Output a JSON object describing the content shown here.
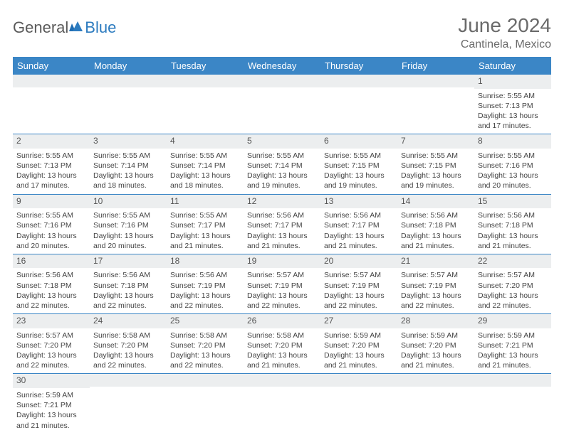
{
  "logo": {
    "part1": "General",
    "part2": "Blue"
  },
  "title": "June 2024",
  "location": "Cantinela, Mexico",
  "colors": {
    "header_bg": "#3b86c6",
    "header_text": "#ffffff",
    "daynum_bg": "#eceeef",
    "border": "#3b86c6",
    "title_color": "#6a6a6a"
  },
  "weekdays": [
    "Sunday",
    "Monday",
    "Tuesday",
    "Wednesday",
    "Thursday",
    "Friday",
    "Saturday"
  ],
  "weeks": [
    [
      {
        "day": "",
        "sunrise": "",
        "sunset": "",
        "daylight": ""
      },
      {
        "day": "",
        "sunrise": "",
        "sunset": "",
        "daylight": ""
      },
      {
        "day": "",
        "sunrise": "",
        "sunset": "",
        "daylight": ""
      },
      {
        "day": "",
        "sunrise": "",
        "sunset": "",
        "daylight": ""
      },
      {
        "day": "",
        "sunrise": "",
        "sunset": "",
        "daylight": ""
      },
      {
        "day": "",
        "sunrise": "",
        "sunset": "",
        "daylight": ""
      },
      {
        "day": "1",
        "sunrise": "Sunrise: 5:55 AM",
        "sunset": "Sunset: 7:13 PM",
        "daylight": "Daylight: 13 hours and 17 minutes."
      }
    ],
    [
      {
        "day": "2",
        "sunrise": "Sunrise: 5:55 AM",
        "sunset": "Sunset: 7:13 PM",
        "daylight": "Daylight: 13 hours and 17 minutes."
      },
      {
        "day": "3",
        "sunrise": "Sunrise: 5:55 AM",
        "sunset": "Sunset: 7:14 PM",
        "daylight": "Daylight: 13 hours and 18 minutes."
      },
      {
        "day": "4",
        "sunrise": "Sunrise: 5:55 AM",
        "sunset": "Sunset: 7:14 PM",
        "daylight": "Daylight: 13 hours and 18 minutes."
      },
      {
        "day": "5",
        "sunrise": "Sunrise: 5:55 AM",
        "sunset": "Sunset: 7:14 PM",
        "daylight": "Daylight: 13 hours and 19 minutes."
      },
      {
        "day": "6",
        "sunrise": "Sunrise: 5:55 AM",
        "sunset": "Sunset: 7:15 PM",
        "daylight": "Daylight: 13 hours and 19 minutes."
      },
      {
        "day": "7",
        "sunrise": "Sunrise: 5:55 AM",
        "sunset": "Sunset: 7:15 PM",
        "daylight": "Daylight: 13 hours and 19 minutes."
      },
      {
        "day": "8",
        "sunrise": "Sunrise: 5:55 AM",
        "sunset": "Sunset: 7:16 PM",
        "daylight": "Daylight: 13 hours and 20 minutes."
      }
    ],
    [
      {
        "day": "9",
        "sunrise": "Sunrise: 5:55 AM",
        "sunset": "Sunset: 7:16 PM",
        "daylight": "Daylight: 13 hours and 20 minutes."
      },
      {
        "day": "10",
        "sunrise": "Sunrise: 5:55 AM",
        "sunset": "Sunset: 7:16 PM",
        "daylight": "Daylight: 13 hours and 20 minutes."
      },
      {
        "day": "11",
        "sunrise": "Sunrise: 5:55 AM",
        "sunset": "Sunset: 7:17 PM",
        "daylight": "Daylight: 13 hours and 21 minutes."
      },
      {
        "day": "12",
        "sunrise": "Sunrise: 5:56 AM",
        "sunset": "Sunset: 7:17 PM",
        "daylight": "Daylight: 13 hours and 21 minutes."
      },
      {
        "day": "13",
        "sunrise": "Sunrise: 5:56 AM",
        "sunset": "Sunset: 7:17 PM",
        "daylight": "Daylight: 13 hours and 21 minutes."
      },
      {
        "day": "14",
        "sunrise": "Sunrise: 5:56 AM",
        "sunset": "Sunset: 7:18 PM",
        "daylight": "Daylight: 13 hours and 21 minutes."
      },
      {
        "day": "15",
        "sunrise": "Sunrise: 5:56 AM",
        "sunset": "Sunset: 7:18 PM",
        "daylight": "Daylight: 13 hours and 21 minutes."
      }
    ],
    [
      {
        "day": "16",
        "sunrise": "Sunrise: 5:56 AM",
        "sunset": "Sunset: 7:18 PM",
        "daylight": "Daylight: 13 hours and 22 minutes."
      },
      {
        "day": "17",
        "sunrise": "Sunrise: 5:56 AM",
        "sunset": "Sunset: 7:18 PM",
        "daylight": "Daylight: 13 hours and 22 minutes."
      },
      {
        "day": "18",
        "sunrise": "Sunrise: 5:56 AM",
        "sunset": "Sunset: 7:19 PM",
        "daylight": "Daylight: 13 hours and 22 minutes."
      },
      {
        "day": "19",
        "sunrise": "Sunrise: 5:57 AM",
        "sunset": "Sunset: 7:19 PM",
        "daylight": "Daylight: 13 hours and 22 minutes."
      },
      {
        "day": "20",
        "sunrise": "Sunrise: 5:57 AM",
        "sunset": "Sunset: 7:19 PM",
        "daylight": "Daylight: 13 hours and 22 minutes."
      },
      {
        "day": "21",
        "sunrise": "Sunrise: 5:57 AM",
        "sunset": "Sunset: 7:19 PM",
        "daylight": "Daylight: 13 hours and 22 minutes."
      },
      {
        "day": "22",
        "sunrise": "Sunrise: 5:57 AM",
        "sunset": "Sunset: 7:20 PM",
        "daylight": "Daylight: 13 hours and 22 minutes."
      }
    ],
    [
      {
        "day": "23",
        "sunrise": "Sunrise: 5:57 AM",
        "sunset": "Sunset: 7:20 PM",
        "daylight": "Daylight: 13 hours and 22 minutes."
      },
      {
        "day": "24",
        "sunrise": "Sunrise: 5:58 AM",
        "sunset": "Sunset: 7:20 PM",
        "daylight": "Daylight: 13 hours and 22 minutes."
      },
      {
        "day": "25",
        "sunrise": "Sunrise: 5:58 AM",
        "sunset": "Sunset: 7:20 PM",
        "daylight": "Daylight: 13 hours and 22 minutes."
      },
      {
        "day": "26",
        "sunrise": "Sunrise: 5:58 AM",
        "sunset": "Sunset: 7:20 PM",
        "daylight": "Daylight: 13 hours and 21 minutes."
      },
      {
        "day": "27",
        "sunrise": "Sunrise: 5:59 AM",
        "sunset": "Sunset: 7:20 PM",
        "daylight": "Daylight: 13 hours and 21 minutes."
      },
      {
        "day": "28",
        "sunrise": "Sunrise: 5:59 AM",
        "sunset": "Sunset: 7:20 PM",
        "daylight": "Daylight: 13 hours and 21 minutes."
      },
      {
        "day": "29",
        "sunrise": "Sunrise: 5:59 AM",
        "sunset": "Sunset: 7:21 PM",
        "daylight": "Daylight: 13 hours and 21 minutes."
      }
    ],
    [
      {
        "day": "30",
        "sunrise": "Sunrise: 5:59 AM",
        "sunset": "Sunset: 7:21 PM",
        "daylight": "Daylight: 13 hours and 21 minutes."
      },
      {
        "day": "",
        "sunrise": "",
        "sunset": "",
        "daylight": ""
      },
      {
        "day": "",
        "sunrise": "",
        "sunset": "",
        "daylight": ""
      },
      {
        "day": "",
        "sunrise": "",
        "sunset": "",
        "daylight": ""
      },
      {
        "day": "",
        "sunrise": "",
        "sunset": "",
        "daylight": ""
      },
      {
        "day": "",
        "sunrise": "",
        "sunset": "",
        "daylight": ""
      },
      {
        "day": "",
        "sunrise": "",
        "sunset": "",
        "daylight": ""
      }
    ]
  ]
}
